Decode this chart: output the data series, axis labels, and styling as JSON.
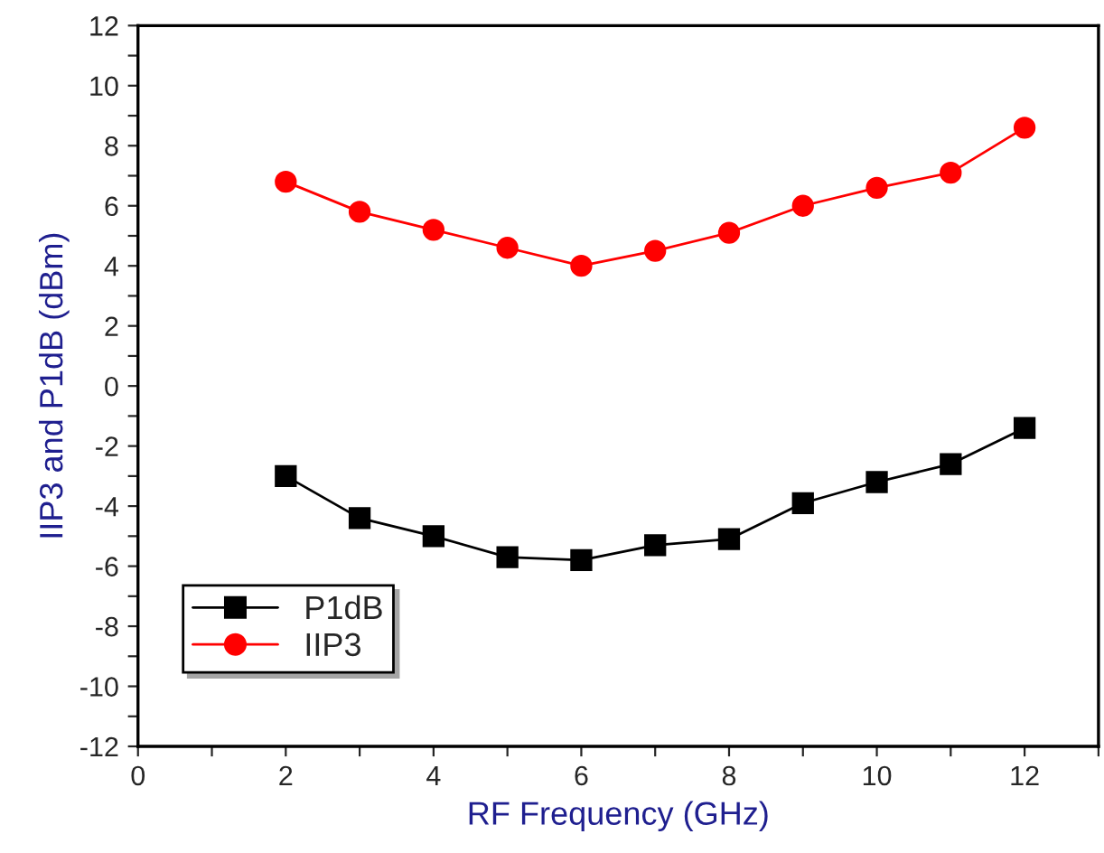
{
  "chart_data": {
    "type": "line",
    "xlabel": "RF Frequency (GHz)",
    "ylabel": "IIP3 and P1dB (dBm)",
    "x": [
      2,
      3,
      4,
      5,
      6,
      7,
      8,
      9,
      10,
      11,
      12
    ],
    "series": [
      {
        "name": "P1dB",
        "color": "#000000",
        "marker": "square",
        "values": [
          -3.0,
          -4.4,
          -5.0,
          -5.7,
          -5.8,
          -5.3,
          -5.1,
          -3.9,
          -3.2,
          -2.6,
          -1.4
        ]
      },
      {
        "name": "IIP3",
        "color": "#ff0000",
        "marker": "circle",
        "values": [
          6.8,
          5.8,
          5.2,
          4.6,
          4.0,
          4.5,
          5.1,
          6.0,
          6.6,
          7.1,
          8.6
        ]
      }
    ],
    "xlim": [
      0,
      13
    ],
    "ylim": [
      -12,
      12
    ],
    "xticks": [
      0,
      {
        "value": 1,
        "label": null
      },
      2,
      {
        "value": 3,
        "label": null
      },
      4,
      {
        "value": 5,
        "label": null
      },
      6,
      {
        "value": 7,
        "label": null
      },
      8,
      {
        "value": 9,
        "label": null
      },
      10,
      {
        "value": 11,
        "label": null
      },
      12,
      {
        "value": 13,
        "label": null
      }
    ],
    "yticks": [
      -12,
      {
        "value": -11,
        "label": null
      },
      -10,
      {
        "value": -9,
        "label": null
      },
      -8,
      {
        "value": -7,
        "label": null
      },
      -6,
      {
        "value": -5,
        "label": null
      },
      -4,
      {
        "value": -3,
        "label": null
      },
      -2,
      {
        "value": -1,
        "label": null
      },
      0,
      {
        "value": 1,
        "label": null
      },
      2,
      {
        "value": 3,
        "label": null
      },
      4,
      {
        "value": 5,
        "label": null
      },
      6,
      {
        "value": 7,
        "label": null
      },
      8,
      {
        "value": 9,
        "label": null
      },
      10,
      {
        "value": 11,
        "label": null
      },
      12
    ],
    "grid": false,
    "legend": "bottom left",
    "line_style": "solid"
  }
}
